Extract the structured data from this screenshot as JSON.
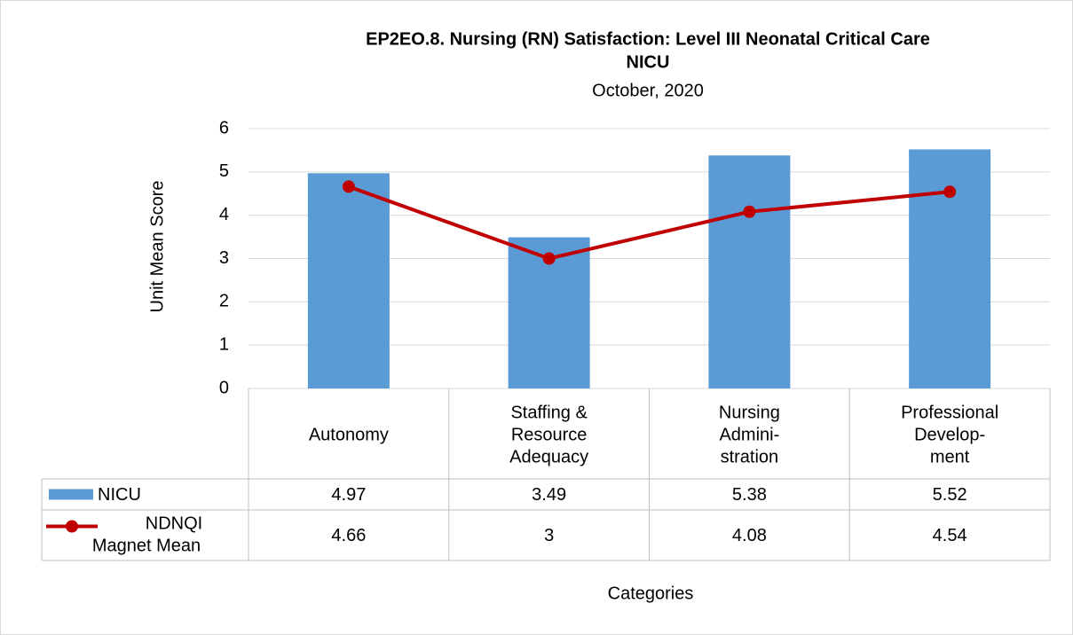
{
  "chart_data": {
    "type": "bar_line_table",
    "title": "EP2EO.8. Nursing (RN) Satisfaction: Level III Neonatal Critical Care",
    "title_line2": "NICU",
    "subtitle": "October, 2020",
    "y_label": "Unit Mean Score",
    "x_label": "Categories",
    "categories": [
      [
        "Autonomy"
      ],
      [
        "Staffing &",
        "Resource",
        "Adequacy"
      ],
      [
        "Nursing",
        "Admini-",
        "stration"
      ],
      [
        "Professional",
        "Develop-",
        "ment"
      ]
    ],
    "series": [
      {
        "name": "NICU",
        "type": "bar",
        "color": "#5b9bd5",
        "values": [
          4.97,
          3.49,
          5.38,
          5.52
        ]
      },
      {
        "name": [
          "NDNQI",
          "Magnet Mean"
        ],
        "type": "line",
        "color": "#c00000",
        "values": [
          4.66,
          3,
          4.08,
          4.54
        ]
      }
    ],
    "ylim": [
      0,
      6
    ],
    "yticks": [
      0,
      1,
      2,
      3,
      4,
      5,
      6
    ],
    "grid": true
  }
}
